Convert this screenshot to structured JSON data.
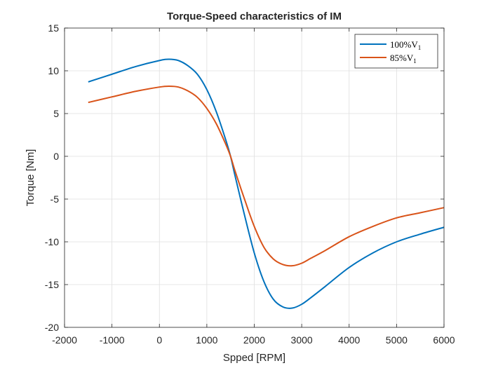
{
  "chart_data": {
    "type": "line",
    "title": "Torque-Speed characteristics of IM",
    "xlabel": "Spped [RPM]",
    "ylabel": "Torque [Nm]",
    "xlim": [
      -2000,
      6000
    ],
    "ylim": [
      -20,
      15
    ],
    "xticks": [
      -2000,
      -1000,
      0,
      1000,
      2000,
      3000,
      4000,
      5000,
      6000
    ],
    "yticks": [
      -20,
      -15,
      -10,
      -5,
      0,
      5,
      10,
      15
    ],
    "xtick_labels": [
      "-2000",
      "-1000",
      "0",
      "1000",
      "2000",
      "3000",
      "4000",
      "5000",
      "6000"
    ],
    "ytick_labels": [
      "-20",
      "-15",
      "-10",
      "-5",
      "0",
      "5",
      "10",
      "15"
    ],
    "grid": true,
    "legend_position": "top-right",
    "series": [
      {
        "name": "100%V1",
        "legend_main": "100%V",
        "legend_sub": "1",
        "color": "#0072BD",
        "x": [
          -1500,
          -1000,
          -500,
          0,
          200,
          400,
          600,
          800,
          1000,
          1200,
          1400,
          1500,
          1600,
          1800,
          2000,
          2200,
          2400,
          2600,
          2800,
          3000,
          3200,
          3500,
          4000,
          4500,
          5000,
          5500,
          6000
        ],
        "y": [
          8.7,
          9.6,
          10.5,
          11.2,
          11.35,
          11.2,
          10.6,
          9.6,
          7.8,
          5.2,
          1.9,
          0,
          -2.4,
          -7.0,
          -11.3,
          -14.6,
          -16.7,
          -17.6,
          -17.75,
          -17.3,
          -16.5,
          -15.2,
          -13.0,
          -11.3,
          -10.0,
          -9.1,
          -8.3
        ]
      },
      {
        "name": "85%V1",
        "legend_main": "85%V",
        "legend_sub": "1",
        "color": "#D95319",
        "x": [
          -1500,
          -1000,
          -500,
          0,
          200,
          400,
          600,
          800,
          1000,
          1200,
          1400,
          1500,
          1600,
          1800,
          2000,
          2200,
          2400,
          2600,
          2800,
          3000,
          3200,
          3500,
          4000,
          4500,
          5000,
          5500,
          6000
        ],
        "y": [
          6.3,
          6.95,
          7.6,
          8.1,
          8.2,
          8.1,
          7.65,
          6.9,
          5.6,
          3.8,
          1.4,
          0,
          -1.8,
          -5.1,
          -8.2,
          -10.6,
          -12.0,
          -12.65,
          -12.8,
          -12.5,
          -11.9,
          -11.0,
          -9.4,
          -8.2,
          -7.2,
          -6.6,
          -6.0
        ]
      }
    ]
  }
}
